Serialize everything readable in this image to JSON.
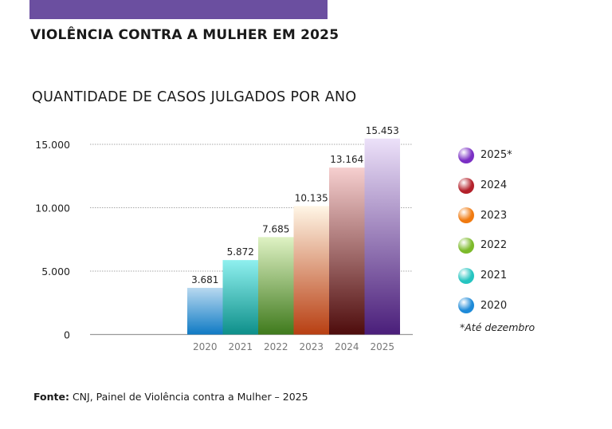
{
  "header": {
    "accent_color": "#6b4fa0",
    "title": "VIOLÊNCIA CONTRA A MULHER EM 2025"
  },
  "chart_data": {
    "type": "bar",
    "title": "QUANTIDADE DE CASOS JULGADOS POR ANO",
    "categories": [
      "2020",
      "2021",
      "2022",
      "2023",
      "2024",
      "2025"
    ],
    "values": [
      3681,
      5872,
      7685,
      10135,
      13164,
      15453
    ],
    "value_labels": [
      "3.681",
      "5.872",
      "7.685",
      "10.135",
      "13.164",
      "15.453"
    ],
    "ylim": [
      0,
      15000
    ],
    "yticks": [
      0,
      5000,
      10000,
      15000
    ],
    "ytick_labels": [
      "0",
      "5.000",
      "10.000",
      "15.000"
    ],
    "grid": true,
    "legend_position": "right",
    "colors": {
      "2020": [
        "#b8d9f0",
        "#0f7ac4"
      ],
      "2021": [
        "#8ff0ef",
        "#0d8f8a"
      ],
      "2022": [
        "#dff2c4",
        "#3f7a1c"
      ],
      "2023": [
        "#fff6e6",
        "#b83f12"
      ],
      "2024": [
        "#f6cfcf",
        "#4e0c0c"
      ],
      "2025": [
        "#ece1f9",
        "#4a1e7a"
      ]
    },
    "legend": [
      {
        "label": "2025*",
        "color": "#7a2fc4"
      },
      {
        "label": "2024",
        "color": "#b3202a"
      },
      {
        "label": "2023",
        "color": "#f07a10"
      },
      {
        "label": "2022",
        "color": "#7cba2a"
      },
      {
        "label": "2021",
        "color": "#25c4c0"
      },
      {
        "label": "2020",
        "color": "#1e8ad8"
      }
    ],
    "note": "*Até dezembro"
  },
  "footer": {
    "source_label": "Fonte:",
    "source_text": " CNJ, Painel de Violência contra a Mulher – 2025"
  }
}
